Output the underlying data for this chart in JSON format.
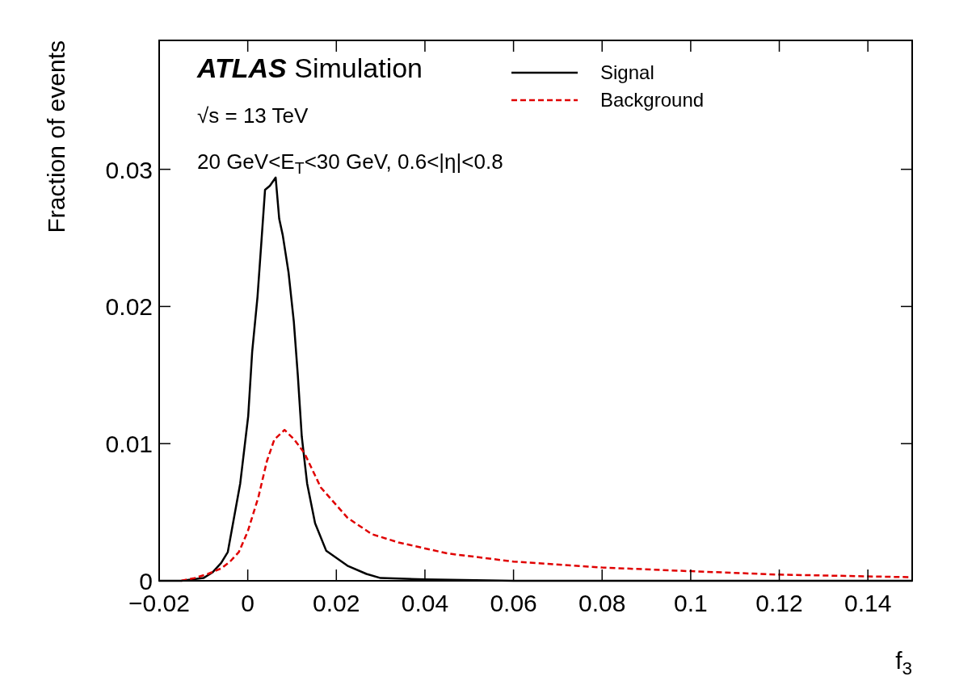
{
  "chart_data": {
    "type": "line",
    "xlabel": "f$_{3}$",
    "ylabel": "Fraction of events",
    "annotations": [
      "ATLAS Simulation",
      "√s = 13 TeV",
      "20 GeV<E$_{T}$<30 GeV, 0.6<|η|<0.8"
    ],
    "xlim": [
      -0.02,
      0.15
    ],
    "ylim": [
      0,
      0.0394
    ],
    "xticks": [
      {
        "value": -0.02,
        "label": "−0.02"
      },
      0,
      0.02,
      0.04,
      0.06,
      0.08,
      0.1,
      0.12,
      0.14
    ],
    "yticks": [
      0,
      0.01,
      0.02,
      0.03
    ],
    "grid": false,
    "legend": "top",
    "marker": "none",
    "series": [
      {
        "name": "Signal",
        "color": "#000000",
        "line_style": "solid",
        "x": [
          -0.02,
          -0.015,
          -0.01,
          -0.008,
          -0.006,
          -0.0045,
          -0.0017,
          0.0001,
          0.001,
          0.0022,
          0.0031,
          0.0039,
          0.005,
          0.0063,
          0.0071,
          0.0079,
          0.0092,
          0.0104,
          0.0113,
          0.0122,
          0.0134,
          0.0152,
          0.0177,
          0.0225,
          0.0268,
          0.03,
          0.04,
          0.06,
          0.15
        ],
        "values": [
          0,
          0,
          0.0002,
          0.0006,
          0.0013,
          0.0021,
          0.0071,
          0.012,
          0.0167,
          0.0207,
          0.0248,
          0.0285,
          0.0288,
          0.0294,
          0.0264,
          0.0252,
          0.0225,
          0.0189,
          0.015,
          0.0105,
          0.0071,
          0.0042,
          0.0022,
          0.0011,
          0.0005,
          0.0002,
          0.0001,
          0,
          0
        ]
      },
      {
        "name": "Background",
        "color": "#e00000",
        "line_style": "dashed",
        "x": [
          -0.015,
          -0.012,
          -0.009,
          -0.006,
          -0.004,
          -0.002,
          0,
          0.0024,
          0.0043,
          0.006,
          0.0083,
          0.0105,
          0.0128,
          0.0165,
          0.0225,
          0.028,
          0.034,
          0.045,
          0.06,
          0.08,
          0.1,
          0.12,
          0.15
        ],
        "values": [
          0,
          0.0002,
          0.0005,
          0.0009,
          0.0014,
          0.0021,
          0.0036,
          0.0061,
          0.0087,
          0.0103,
          0.011,
          0.0103,
          0.0093,
          0.0068,
          0.0046,
          0.0034,
          0.0028,
          0.002,
          0.0014,
          0.00097,
          0.0007,
          0.00045,
          0.00026
        ]
      }
    ]
  }
}
